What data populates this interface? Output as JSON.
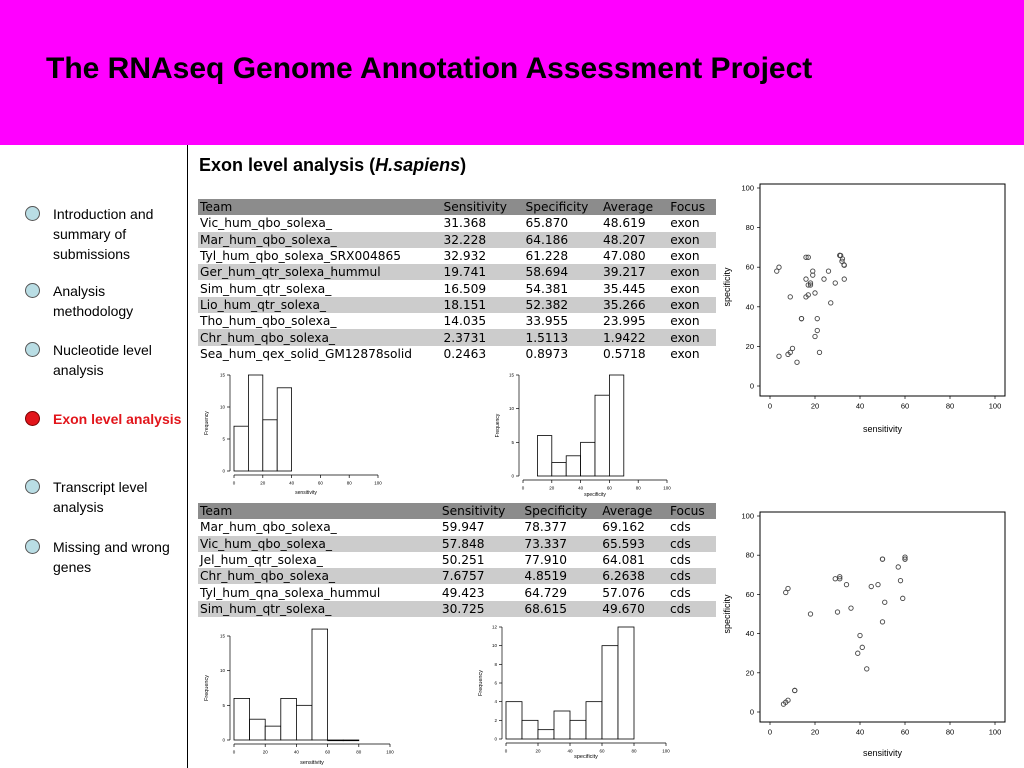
{
  "title": "The RNAseq Genome Annotation Assessment Project",
  "nav": [
    {
      "label": "Introduction and summary of submissions",
      "active": false
    },
    {
      "label": "Analysis methodology",
      "active": false
    },
    {
      "label": "Nucleotide level analysis",
      "active": false
    },
    {
      "label": "Exon level analysis",
      "active": true
    },
    {
      "label": "Transcript level analysis",
      "active": false
    },
    {
      "label": "Missing and wrong genes",
      "active": false
    }
  ],
  "section": {
    "title_prefix": "Exon level analysis (",
    "title_species": "H.sapiens",
    "title_suffix": ")"
  },
  "tables": [
    {
      "headers": [
        "Team",
        "Sensitivity",
        "Specificity",
        "Average",
        "Focus"
      ],
      "rows": [
        [
          "Vic_hum_qbo_solexa_",
          "31.368",
          "65.870",
          "48.619",
          "exon"
        ],
        [
          "Mar_hum_qbo_solexa_",
          "32.228",
          "64.186",
          "48.207",
          "exon"
        ],
        [
          "Tyl_hum_qbo_solexa_SRX004865",
          "32.932",
          "61.228",
          "47.080",
          "exon"
        ],
        [
          "Ger_hum_qtr_solexa_hummul",
          "19.741",
          "58.694",
          "39.217",
          "exon"
        ],
        [
          "Sim_hum_qtr_solexa_",
          "16.509",
          "54.381",
          "35.445",
          "exon"
        ],
        [
          "Lio_hum_qtr_solexa_",
          "18.151",
          "52.382",
          "35.266",
          "exon"
        ],
        [
          "Tho_hum_qbo_solexa_",
          "14.035",
          "33.955",
          "23.995",
          "exon"
        ],
        [
          "Chr_hum_qbo_solexa_",
          "2.3731",
          "1.5113",
          "1.9422",
          "exon"
        ],
        [
          "Sea_hum_qex_solid_GM12878solid",
          "0.2463",
          "0.8973",
          "0.5718",
          "exon"
        ]
      ]
    },
    {
      "headers": [
        "Team",
        "Sensitivity",
        "Specificity",
        "Average",
        "Focus"
      ],
      "rows": [
        [
          "Mar_hum_qbo_solexa_",
          "59.947",
          "78.377",
          "69.162",
          "cds"
        ],
        [
          "Vic_hum_qbo_solexa_",
          "57.848",
          "73.337",
          "65.593",
          "cds"
        ],
        [
          "Jel_hum_qtr_solexa_",
          "50.251",
          "77.910",
          "64.081",
          "cds"
        ],
        [
          "Chr_hum_qbo_solexa_",
          "7.6757",
          "4.8519",
          "6.2638",
          "cds"
        ],
        [
          "Tyl_hum_qna_solexa_hummul",
          "49.423",
          "64.729",
          "57.076",
          "cds"
        ],
        [
          "Sim_hum_qtr_solexa_",
          "30.725",
          "68.615",
          "49.670",
          "cds"
        ]
      ]
    }
  ],
  "chart_data": [
    {
      "type": "histogram",
      "xlabel": "sensitivity",
      "ylabel": "Frequency",
      "xlim": [
        0,
        100
      ],
      "xticks": [
        "0",
        "20",
        "40",
        "60",
        "80",
        "100"
      ],
      "ylim": [
        0,
        15
      ],
      "yticks": [
        "0",
        "5",
        "10",
        "15"
      ],
      "bins": [
        [
          0,
          10
        ],
        [
          10,
          20
        ],
        [
          20,
          30
        ],
        [
          30,
          40
        ]
      ],
      "values": [
        7,
        15,
        8,
        13
      ]
    },
    {
      "type": "histogram",
      "xlabel": "specificity",
      "ylabel": "Frequency",
      "xlim": [
        0,
        100
      ],
      "xticks": [
        "0",
        "20",
        "40",
        "60",
        "80",
        "100"
      ],
      "ylim": [
        0,
        15
      ],
      "yticks": [
        "0",
        "5",
        "10",
        "15"
      ],
      "bins": [
        [
          10,
          20
        ],
        [
          20,
          30
        ],
        [
          30,
          40
        ],
        [
          40,
          50
        ],
        [
          50,
          60
        ],
        [
          60,
          70
        ]
      ],
      "values": [
        6,
        2,
        3,
        5,
        12,
        15
      ]
    },
    {
      "type": "scatter",
      "xlabel": "sensitivity",
      "ylabel": "specificity",
      "xlim": [
        0,
        100
      ],
      "ylim": [
        0,
        100
      ],
      "xticks": [
        "0",
        "20",
        "40",
        "60",
        "80",
        "100"
      ],
      "yticks": [
        "0",
        "20",
        "40",
        "60",
        "80",
        "100"
      ],
      "points": [
        [
          3,
          58
        ],
        [
          4,
          60
        ],
        [
          9,
          45
        ],
        [
          8,
          16
        ],
        [
          10,
          19
        ],
        [
          9,
          17
        ],
        [
          12,
          12
        ],
        [
          4,
          15
        ],
        [
          14,
          34
        ],
        [
          14,
          34
        ],
        [
          16,
          65
        ],
        [
          17,
          65
        ],
        [
          16,
          54
        ],
        [
          16,
          45
        ],
        [
          17,
          46
        ],
        [
          17,
          51
        ],
        [
          18,
          52
        ],
        [
          18,
          51
        ],
        [
          19,
          56
        ],
        [
          19,
          58
        ],
        [
          20,
          47
        ],
        [
          20,
          25
        ],
        [
          21,
          28
        ],
        [
          21,
          34
        ],
        [
          22,
          17
        ],
        [
          24,
          54
        ],
        [
          26,
          58
        ],
        [
          27,
          42
        ],
        [
          29,
          52
        ],
        [
          31,
          66
        ],
        [
          32,
          63
        ],
        [
          33,
          61
        ],
        [
          33,
          54
        ],
        [
          31.4,
          65.9
        ],
        [
          32.2,
          64.2
        ],
        [
          32.9,
          61.2
        ]
      ]
    },
    {
      "type": "histogram",
      "xlabel": "sensitivity",
      "ylabel": "Frequency",
      "xlim": [
        0,
        100
      ],
      "xticks": [
        "0",
        "20",
        "40",
        "60",
        "80",
        "100"
      ],
      "ylim": [
        0,
        15
      ],
      "yticks": [
        "0",
        "5",
        "10",
        "15"
      ],
      "bins": [
        [
          0,
          10
        ],
        [
          10,
          20
        ],
        [
          20,
          30
        ],
        [
          30,
          40
        ],
        [
          40,
          50
        ],
        [
          50,
          60
        ],
        [
          60,
          70
        ],
        [
          70,
          80
        ]
      ],
      "values": [
        6,
        3,
        2,
        6,
        5,
        16,
        0,
        0
      ]
    },
    {
      "type": "histogram",
      "xlabel": "specificity",
      "ylabel": "Frequency",
      "xlim": [
        0,
        100
      ],
      "xticks": [
        "0",
        "20",
        "40",
        "60",
        "80",
        "100"
      ],
      "ylim": [
        0,
        12
      ],
      "yticks": [
        "0",
        "2",
        "4",
        "6",
        "8",
        "10",
        "12"
      ],
      "bins": [
        [
          0,
          10
        ],
        [
          10,
          20
        ],
        [
          20,
          30
        ],
        [
          30,
          40
        ],
        [
          40,
          50
        ],
        [
          50,
          60
        ],
        [
          60,
          70
        ],
        [
          70,
          80
        ]
      ],
      "values": [
        4,
        2,
        1,
        3,
        2,
        4,
        10,
        12
      ]
    },
    {
      "type": "scatter",
      "xlabel": "sensitivity",
      "ylabel": "specificity",
      "xlim": [
        0,
        100
      ],
      "ylim": [
        0,
        100
      ],
      "xticks": [
        "0",
        "20",
        "40",
        "60",
        "80",
        "100"
      ],
      "yticks": [
        "0",
        "20",
        "40",
        "60",
        "80",
        "100"
      ],
      "points": [
        [
          6,
          4
        ],
        [
          7,
          5
        ],
        [
          8,
          6
        ],
        [
          11,
          11
        ],
        [
          11,
          11
        ],
        [
          7,
          61
        ],
        [
          8,
          63
        ],
        [
          18,
          50
        ],
        [
          29,
          68
        ],
        [
          30,
          51
        ],
        [
          31,
          69
        ],
        [
          31,
          68
        ],
        [
          34,
          65
        ],
        [
          36,
          53
        ],
        [
          39,
          30
        ],
        [
          40,
          39
        ],
        [
          41,
          33
        ],
        [
          43,
          22
        ],
        [
          45,
          64
        ],
        [
          48,
          65
        ],
        [
          50,
          78
        ],
        [
          50,
          78
        ],
        [
          50,
          46
        ],
        [
          51,
          56
        ],
        [
          57,
          74
        ],
        [
          58,
          67
        ],
        [
          59,
          58
        ],
        [
          60,
          78
        ],
        [
          60,
          78
        ],
        [
          60,
          79
        ]
      ]
    }
  ]
}
